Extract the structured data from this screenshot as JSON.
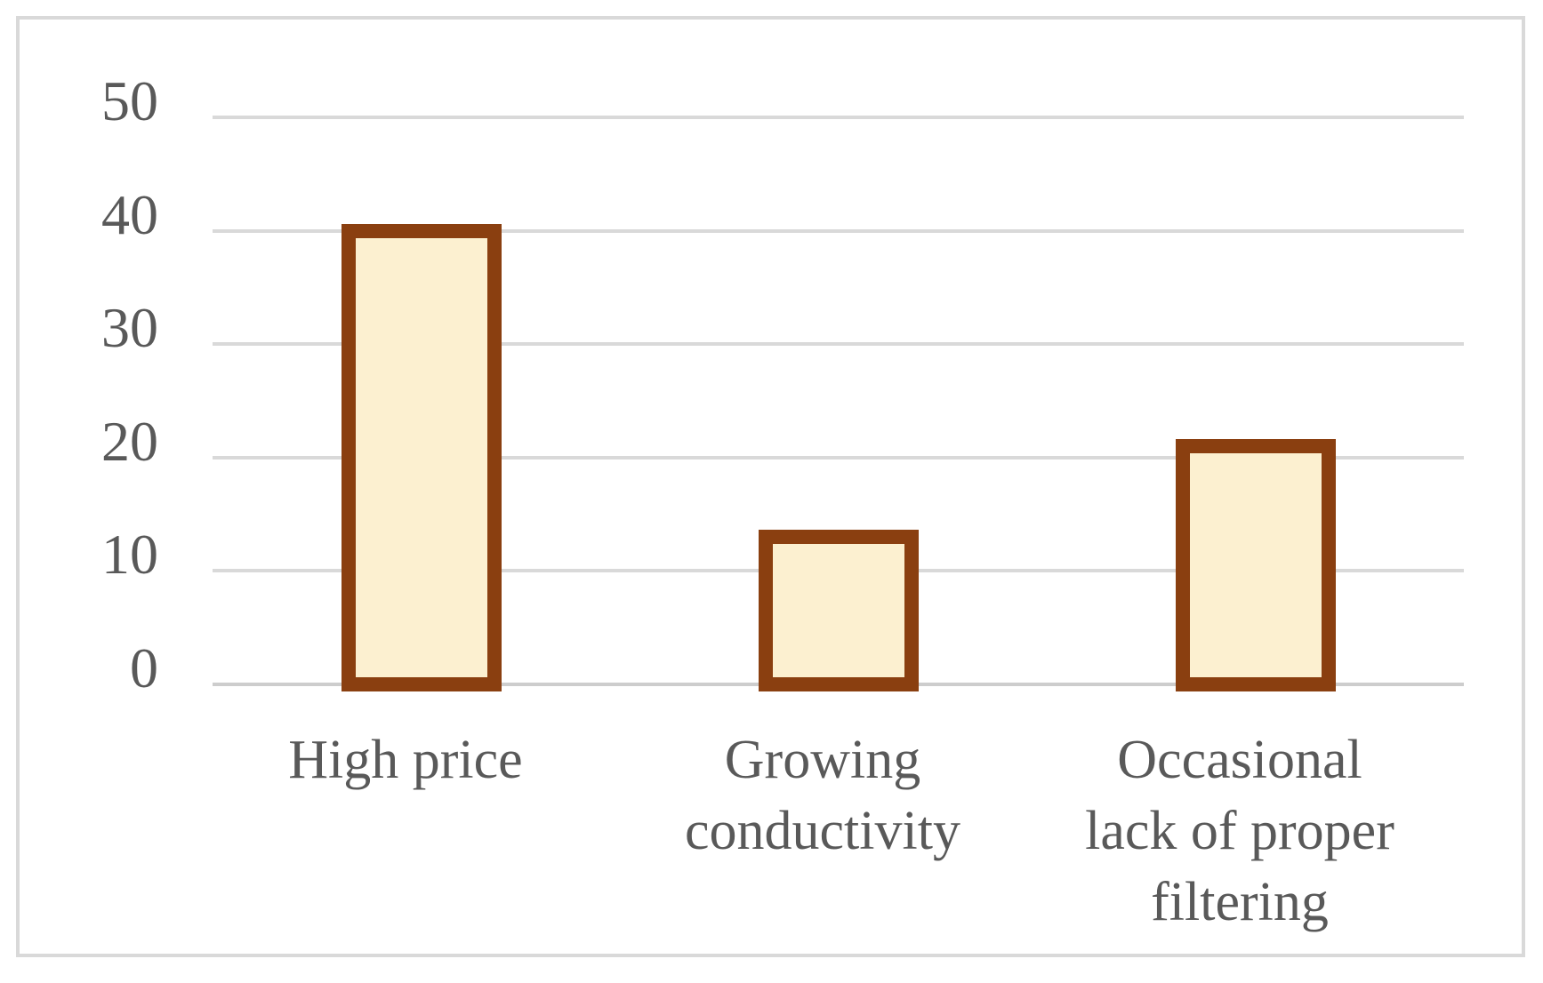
{
  "chart_data": {
    "type": "bar",
    "categories": [
      "High price",
      "Growing conductivity",
      "Occasional lack of proper filtering"
    ],
    "category_lines": [
      [
        "High price"
      ],
      [
        "Growing",
        "conductivity"
      ],
      [
        "Occasional",
        "lack of proper",
        "filtering"
      ]
    ],
    "values": [
      40,
      13,
      21
    ],
    "title": "",
    "xlabel": "",
    "ylabel": "",
    "ylim": [
      0,
      50
    ],
    "yticks": [
      0,
      10,
      20,
      30,
      40,
      50
    ],
    "grid": true,
    "legend": false,
    "colors": {
      "bar_fill": "#FCF0D0",
      "bar_border": "#8A3F10",
      "gridline": "#D9D9D9",
      "axis_line": "#CDCDCD",
      "tick_label": "#595959",
      "frame_border": "#D9D9D9",
      "background": "#FFFFFF"
    }
  }
}
